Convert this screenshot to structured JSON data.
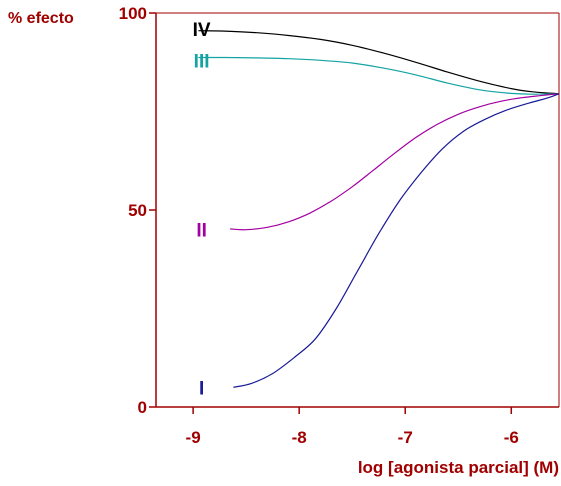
{
  "chart_data": {
    "type": "line",
    "ylabel": "% efecto",
    "xlabel": "log [agonista parcial] (M)",
    "xlim": [
      -9.35,
      -5.55
    ],
    "ylim": [
      0,
      100
    ],
    "x_ticks": [
      -9,
      -8,
      -7,
      -6
    ],
    "x_tick_labels": [
      "-9",
      "-8",
      "-7",
      "-6"
    ],
    "y_ticks": [
      0,
      50,
      100
    ],
    "y_tick_labels": [
      "0",
      "50",
      "100"
    ],
    "grid": false,
    "axis_color": "#a00000",
    "series": [
      {
        "name": "IV",
        "color": "#000000",
        "label_at": [
          -8.92,
          96
        ],
        "x": [
          -8.95,
          -8.7,
          -8.4,
          -8.1,
          -7.8,
          -7.5,
          -7.2,
          -6.9,
          -6.6,
          -6.3,
          -6.0,
          -5.8,
          -5.55
        ],
        "values": [
          95.5,
          95.4,
          95.0,
          94.3,
          93.3,
          91.8,
          89.8,
          87.5,
          85.0,
          82.7,
          80.8,
          80.0,
          79.5
        ]
      },
      {
        "name": "III",
        "color": "#13a3a3",
        "label_at": [
          -8.92,
          88
        ],
        "x": [
          -8.95,
          -8.7,
          -8.4,
          -8.1,
          -7.8,
          -7.5,
          -7.2,
          -6.9,
          -6.6,
          -6.3,
          -6.0,
          -5.8,
          -5.55
        ],
        "values": [
          88.7,
          88.7,
          88.6,
          88.4,
          88.0,
          87.3,
          86.0,
          84.3,
          82.2,
          80.5,
          79.6,
          79.4,
          79.5
        ]
      },
      {
        "name": "II",
        "color": "#a200a2",
        "label_at": [
          -8.92,
          45
        ],
        "x": [
          -8.65,
          -8.5,
          -8.3,
          -8.1,
          -7.9,
          -7.7,
          -7.5,
          -7.3,
          -7.1,
          -6.9,
          -6.7,
          -6.5,
          -6.3,
          -6.1,
          -5.9,
          -5.7,
          -5.55
        ],
        "values": [
          45.2,
          45.0,
          45.6,
          47.0,
          49.2,
          52.2,
          55.9,
          60.1,
          64.4,
          68.4,
          71.7,
          74.3,
          76.2,
          77.6,
          78.5,
          79.1,
          79.5
        ]
      },
      {
        "name": "I",
        "color": "#1a1a9a",
        "label_at": [
          -8.92,
          5
        ],
        "x": [
          -8.62,
          -8.45,
          -8.25,
          -8.05,
          -7.85,
          -7.65,
          -7.45,
          -7.25,
          -7.05,
          -6.85,
          -6.65,
          -6.45,
          -6.25,
          -6.05,
          -5.85,
          -5.65,
          -5.55
        ],
        "values": [
          5.0,
          6.0,
          8.5,
          12.5,
          17.2,
          25.0,
          34.5,
          44.0,
          52.5,
          59.5,
          65.5,
          70.0,
          73.0,
          75.3,
          77.0,
          78.5,
          79.5
        ]
      }
    ]
  }
}
